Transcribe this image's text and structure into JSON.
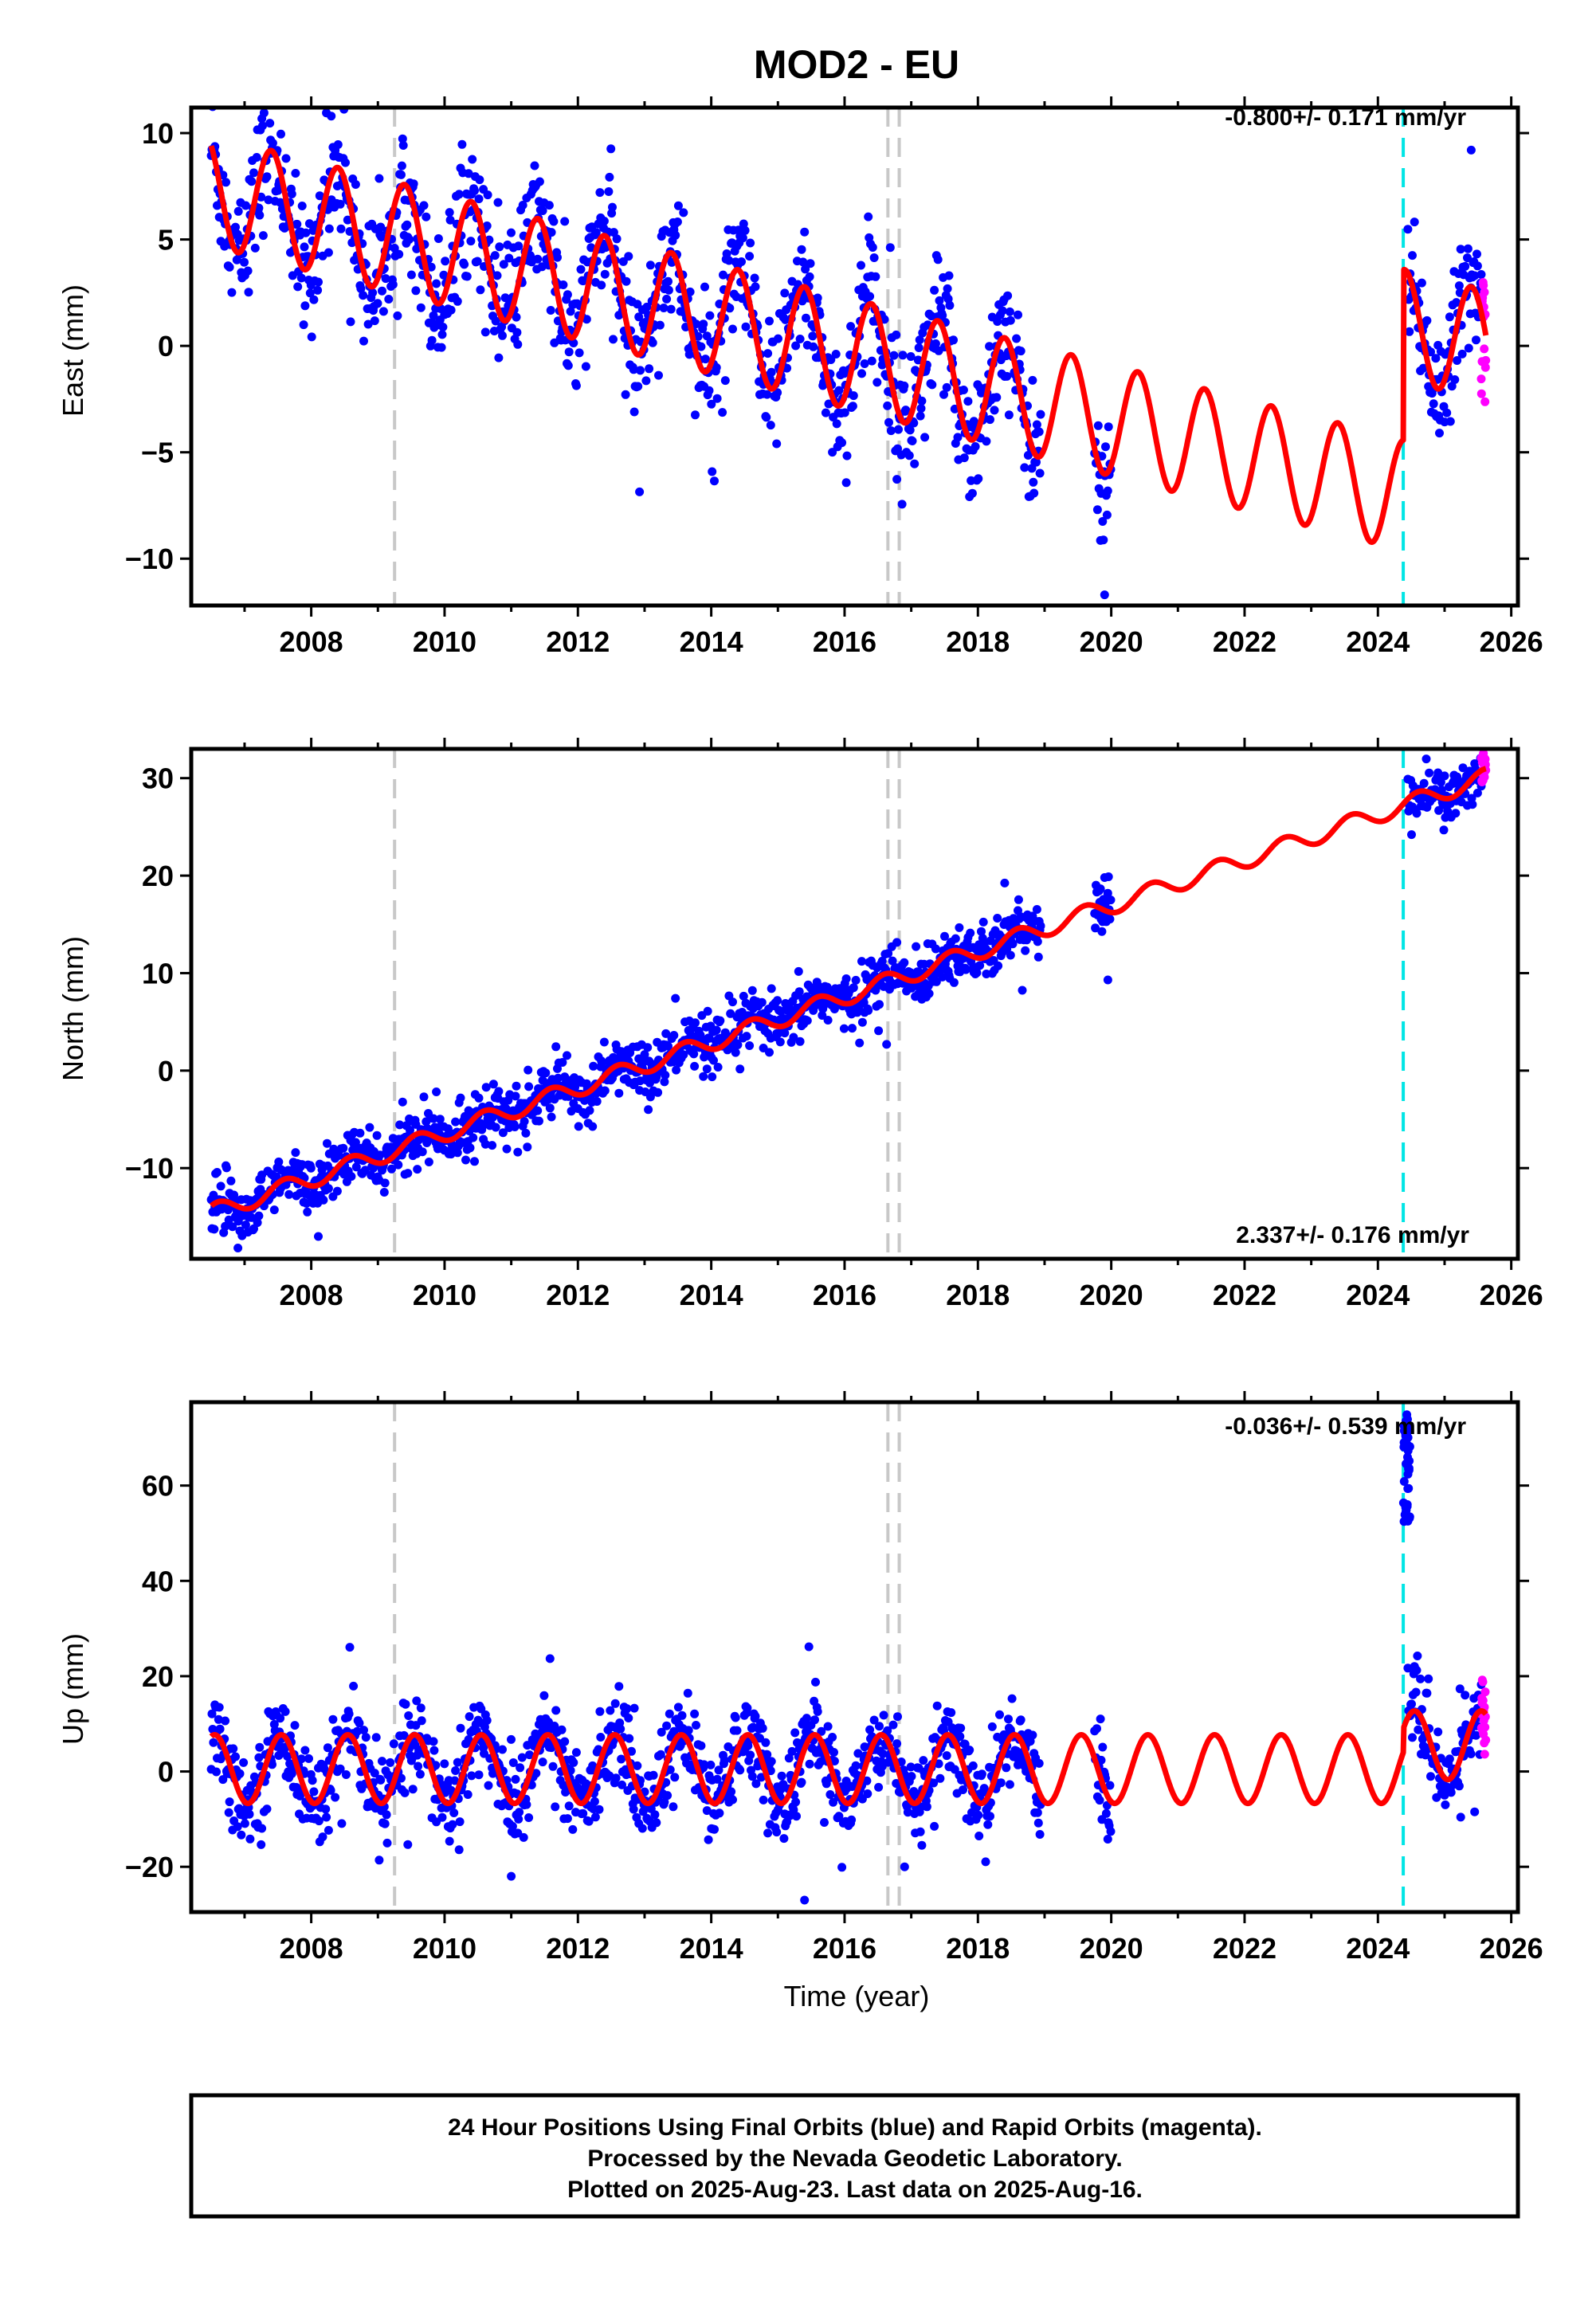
{
  "colors": {
    "final_orbits": "#0000ff",
    "rapid_orbits": "#ff00ff",
    "model_fit": "#ff0000",
    "antenna_change": "#c8c8c8",
    "equipment_event": "#00e5e5"
  },
  "chart_data": [
    {
      "type": "scatter",
      "title": "MOD2 - EU",
      "xlabel": "",
      "ylabel": "East (mm)",
      "xlim": [
        2006.2,
        2026.1
      ],
      "ylim": [
        -12.2,
        11.2
      ],
      "xticks": [
        2008,
        2010,
        2012,
        2014,
        2016,
        2018,
        2020,
        2022,
        2024,
        2026
      ],
      "yticks": [
        -10,
        -5,
        0,
        5,
        10
      ],
      "rate_label": "-0.800+/- 0.171 mm/yr",
      "rate_position": "top-right",
      "gray_dashed_lines": [
        2009.25,
        2016.65,
        2016.82
      ],
      "cyan_dashed_lines": [
        2024.38
      ],
      "model": {
        "offset": 7.3,
        "ref_year": 2006.5,
        "rate": -0.8,
        "amplitude": 2.6,
        "peak_phase": 0.4,
        "jumps": [
          {
            "year": 2009.25,
            "size": 0.0
          },
          {
            "year": 2024.38,
            "size": 8.0
          }
        ]
      },
      "final_orbit_segments": [
        [
          2006.5,
          2018.95
        ],
        [
          2019.75,
          2020.0
        ],
        [
          2024.45,
          2025.55
        ]
      ],
      "rapid_orbit_segments": [
        [
          2025.55,
          2025.62
        ]
      ],
      "scatter_spread": 1.5,
      "outliers": [
        {
          "x": 2019.9,
          "y": -11.7
        },
        {
          "x": 2025.4,
          "y": 9.2
        },
        {
          "x": 2008.3,
          "y": 10.8
        }
      ]
    },
    {
      "type": "scatter",
      "title": "",
      "xlabel": "",
      "ylabel": "North (mm)",
      "xlim": [
        2006.2,
        2026.1
      ],
      "ylim": [
        -19.3,
        33.0
      ],
      "xticks": [
        2008,
        2010,
        2012,
        2014,
        2016,
        2018,
        2020,
        2022,
        2024,
        2026
      ],
      "yticks": [
        -10,
        0,
        10,
        20,
        30
      ],
      "rate_label": "2.337+/- 0.176 mm/yr",
      "rate_position": "bottom-right",
      "gray_dashed_lines": [
        2009.25,
        2016.65,
        2016.82
      ],
      "cyan_dashed_lines": [
        2024.38
      ],
      "model": {
        "offset": -14.6,
        "ref_year": 2006.5,
        "rate": 2.337,
        "amplitude": 0.9,
        "peak_phase": 0.6,
        "jumps": []
      },
      "final_orbit_segments": [
        [
          2006.5,
          2018.95
        ],
        [
          2019.75,
          2020.0
        ],
        [
          2024.45,
          2025.55
        ]
      ],
      "rapid_orbit_segments": [
        [
          2025.55,
          2025.62
        ]
      ],
      "scatter_spread": 1.4,
      "outliers": [
        {
          "x": 2006.9,
          "y": -18.2
        },
        {
          "x": 2019.95,
          "y": 9.3
        },
        {
          "x": 2019.9,
          "y": 19.8
        }
      ]
    },
    {
      "type": "scatter",
      "title": "",
      "xlabel": "Time (year)",
      "ylabel": "Up (mm)",
      "xlim": [
        2006.2,
        2026.1
      ],
      "ylim": [
        -29.5,
        77.5
      ],
      "xticks": [
        2008,
        2010,
        2012,
        2014,
        2016,
        2018,
        2020,
        2022,
        2024,
        2026
      ],
      "yticks": [
        -20,
        0,
        20,
        40,
        60
      ],
      "rate_label": "-0.036+/- 0.539 mm/yr",
      "rate_position": "top-right",
      "gray_dashed_lines": [
        2009.25,
        2016.65,
        2016.82
      ],
      "cyan_dashed_lines": [
        2024.38
      ],
      "model": {
        "offset": 0.5,
        "ref_year": 2006.5,
        "rate": 0.0,
        "amplitude": 7.2,
        "peak_phase": 0.55,
        "jumps": [
          {
            "year": 2024.38,
            "size": 5.0
          }
        ]
      },
      "final_orbit_segments": [
        [
          2006.5,
          2018.95
        ],
        [
          2019.75,
          2020.0
        ],
        [
          2024.45,
          2025.55
        ]
      ],
      "rapid_orbit_segments": [
        [
          2025.55,
          2025.62
        ]
      ],
      "scatter_spread": 4.5,
      "outliers": [
        {
          "x": 2015.4,
          "y": -27.0
        },
        {
          "x": 2011.0,
          "y": -22.0
        },
        {
          "x": 2016.9,
          "y": -20.0
        }
      ],
      "extra_cluster": {
        "x_range": [
          2024.38,
          2024.48
        ],
        "y_range": [
          52,
          75
        ]
      }
    }
  ],
  "footer": {
    "line1": "24 Hour Positions Using Final Orbits (blue) and Rapid Orbits (magenta).",
    "line2": "Processed by the Nevada Geodetic Laboratory.",
    "line3": "Plotted on 2025-Aug-23. Last data on 2025-Aug-16."
  }
}
